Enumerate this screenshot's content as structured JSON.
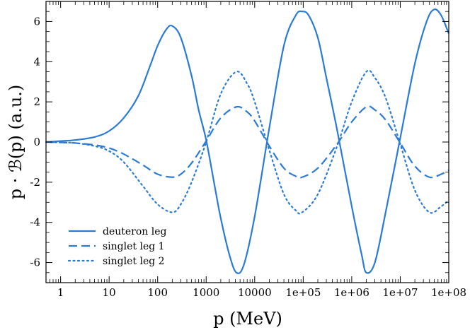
{
  "chart_data": {
    "type": "line",
    "xlabel": "p (MeV)",
    "ylabel": "p · ℬ(p) (a.u.)",
    "xscale": "log",
    "xlim": [
      0.5,
      100000000
    ],
    "ylim": [
      -7,
      7
    ],
    "grid": false,
    "legend_position": "bottom-left",
    "line_color": "#2b7bd6",
    "x_ticks": [
      {
        "value": 1,
        "label": "1"
      },
      {
        "value": 10,
        "label": "10"
      },
      {
        "value": 100,
        "label": "100"
      },
      {
        "value": 1000,
        "label": "1000"
      },
      {
        "value": 10000,
        "label": "10000"
      },
      {
        "value": 100000,
        "label": "1e+05"
      },
      {
        "value": 1000000,
        "label": "1e+06"
      },
      {
        "value": 10000000,
        "label": "1e+07"
      },
      {
        "value": 100000000,
        "label": "1e+08"
      }
    ],
    "y_ticks": [
      {
        "value": 6,
        "label": "6"
      },
      {
        "value": 4,
        "label": "4"
      },
      {
        "value": 2,
        "label": "2"
      },
      {
        "value": 0,
        "label": "0"
      },
      {
        "value": -2,
        "label": "-2"
      },
      {
        "value": -4,
        "label": "-4"
      },
      {
        "value": -6,
        "label": "-6"
      }
    ],
    "series": [
      {
        "name": "deuteron leg",
        "style": "solid",
        "x": [
          0.5,
          1,
          2,
          5,
          10,
          20,
          40,
          70,
          100,
          150,
          200,
          300,
          500,
          700,
          1000,
          1500,
          2000,
          3000,
          4200,
          6000,
          10000,
          20000,
          40000,
          70000,
          95000,
          130000,
          200000,
          300000,
          500000,
          1000000,
          1600000,
          2000000,
          3000000,
          5000000,
          10000000,
          20000000,
          35000000,
          50000000,
          70000000,
          100000000
        ],
        "y": [
          0.0,
          0.05,
          0.1,
          0.25,
          0.55,
          1.2,
          2.3,
          3.8,
          4.8,
          5.6,
          5.78,
          5.2,
          3.3,
          1.6,
          0.1,
          -2.2,
          -3.8,
          -5.6,
          -6.5,
          -6.1,
          -3.7,
          0.7,
          4.8,
          6.3,
          6.5,
          6.3,
          5.2,
          3.2,
          0.6,
          -3.2,
          -5.6,
          -6.5,
          -6.0,
          -3.5,
          0.2,
          3.9,
          6.0,
          6.6,
          6.3,
          5.4
        ]
      },
      {
        "name": "singlet leg 1",
        "style": "dashed",
        "x": [
          0.5,
          1,
          2,
          5,
          10,
          20,
          50,
          100,
          200,
          300,
          500,
          1000,
          2000,
          4200,
          7000,
          10000,
          20000,
          40000,
          70000,
          95000,
          200000,
          500000,
          1000000,
          2000000,
          3000000,
          5000000,
          10000000,
          20000000,
          40000000,
          70000000,
          100000000
        ],
        "y": [
          0.0,
          -0.02,
          -0.05,
          -0.15,
          -0.3,
          -0.6,
          -1.15,
          -1.6,
          -1.75,
          -1.6,
          -1.05,
          0.05,
          1.2,
          1.75,
          1.5,
          1.05,
          -0.2,
          -1.3,
          -1.7,
          -1.75,
          -1.3,
          -0.1,
          1.0,
          1.75,
          1.6,
          1.1,
          -0.05,
          -1.2,
          -1.75,
          -1.6,
          -1.4
        ]
      },
      {
        "name": "singlet leg 2",
        "style": "dotted",
        "x": [
          0.5,
          1,
          2,
          5,
          10,
          20,
          50,
          100,
          200,
          300,
          500,
          1000,
          2000,
          4200,
          7000,
          10000,
          20000,
          40000,
          70000,
          95000,
          200000,
          500000,
          1000000,
          2000000,
          3000000,
          5000000,
          10000000,
          20000000,
          40000000,
          70000000,
          100000000
        ],
        "y": [
          0.0,
          -0.02,
          -0.05,
          -0.2,
          -0.45,
          -1.0,
          -2.2,
          -3.1,
          -3.5,
          -3.1,
          -2.0,
          0.0,
          2.4,
          3.5,
          2.9,
          2.0,
          -0.4,
          -2.6,
          -3.4,
          -3.5,
          -2.6,
          -0.2,
          2.0,
          3.5,
          3.2,
          2.2,
          -0.1,
          -2.4,
          -3.5,
          -3.2,
          -2.9
        ]
      }
    ]
  }
}
